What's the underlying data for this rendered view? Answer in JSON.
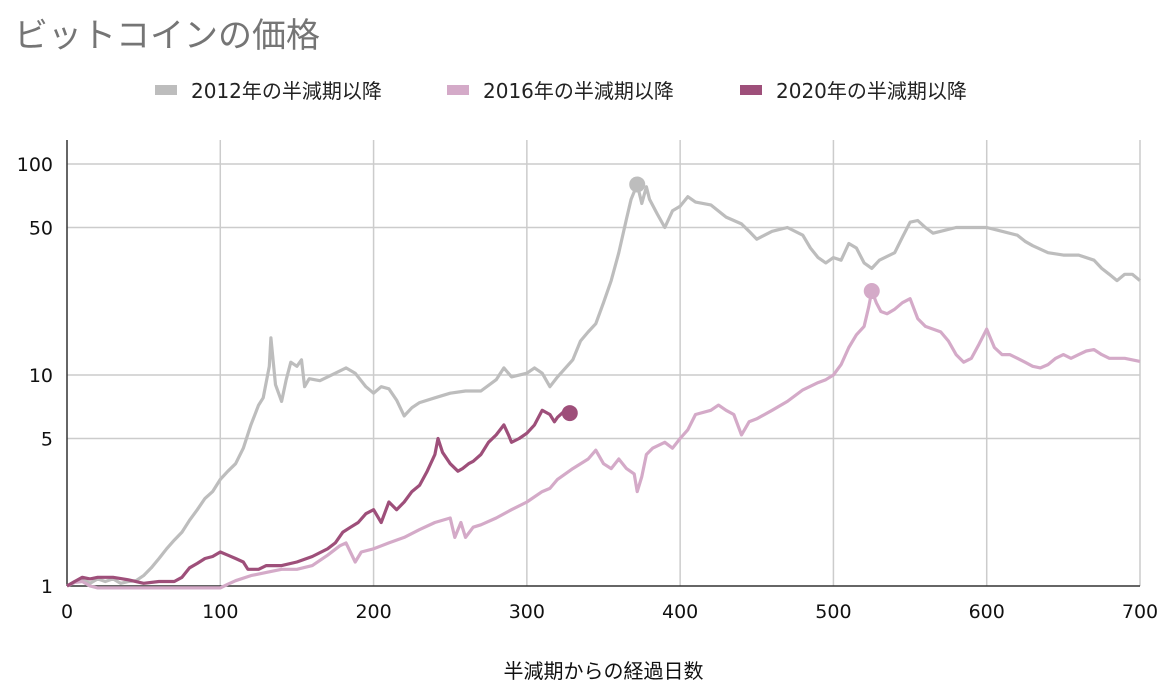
{
  "chart_data": {
    "type": "line",
    "title": "ビットコインの価格",
    "xlabel": "半減期からの経過日数",
    "ylabel": "",
    "x_scale": "linear",
    "y_scale": "log",
    "xlim": [
      0,
      700
    ],
    "ylim": [
      1,
      100
    ],
    "xticks": [
      0,
      100,
      200,
      300,
      400,
      500,
      600,
      700
    ],
    "yticks": [
      1,
      5,
      10,
      50,
      100
    ],
    "grid": true,
    "legend_position": "top",
    "series": [
      {
        "name": "2012年の半減期以降",
        "color": "#bdbdbd",
        "marker_last_peak": true,
        "points": [
          [
            0,
            1
          ],
          [
            5,
            1.05
          ],
          [
            10,
            1.08
          ],
          [
            15,
            1.03
          ],
          [
            20,
            1.08
          ],
          [
            25,
            1.05
          ],
          [
            30,
            1.08
          ],
          [
            35,
            1.03
          ],
          [
            40,
            1.05
          ],
          [
            45,
            1.06
          ],
          [
            50,
            1.12
          ],
          [
            55,
            1.22
          ],
          [
            60,
            1.35
          ],
          [
            65,
            1.5
          ],
          [
            70,
            1.65
          ],
          [
            75,
            1.8
          ],
          [
            80,
            2.05
          ],
          [
            85,
            2.3
          ],
          [
            90,
            2.6
          ],
          [
            95,
            2.8
          ],
          [
            100,
            3.2
          ],
          [
            105,
            3.5
          ],
          [
            110,
            3.8
          ],
          [
            115,
            4.5
          ],
          [
            120,
            5.8
          ],
          [
            125,
            7.2
          ],
          [
            128,
            7.8
          ],
          [
            132,
            11
          ],
          [
            133,
            15
          ],
          [
            136,
            9
          ],
          [
            140,
            7.5
          ],
          [
            143,
            9.5
          ],
          [
            146,
            11.5
          ],
          [
            150,
            11
          ],
          [
            153,
            11.8
          ],
          [
            155,
            8.8
          ],
          [
            158,
            9.6
          ],
          [
            165,
            9.4
          ],
          [
            175,
            10.2
          ],
          [
            182,
            10.8
          ],
          [
            188,
            10.2
          ],
          [
            195,
            8.8
          ],
          [
            200,
            8.2
          ],
          [
            205,
            8.8
          ],
          [
            210,
            8.6
          ],
          [
            215,
            7.6
          ],
          [
            220,
            6.4
          ],
          [
            225,
            7.0
          ],
          [
            230,
            7.4
          ],
          [
            240,
            7.8
          ],
          [
            250,
            8.2
          ],
          [
            260,
            8.4
          ],
          [
            270,
            8.4
          ],
          [
            280,
            9.5
          ],
          [
            285,
            10.8
          ],
          [
            290,
            9.8
          ],
          [
            300,
            10.2
          ],
          [
            305,
            10.8
          ],
          [
            310,
            10.2
          ],
          [
            315,
            8.8
          ],
          [
            320,
            9.8
          ],
          [
            330,
            11.8
          ],
          [
            335,
            14.5
          ],
          [
            340,
            16
          ],
          [
            345,
            17.5
          ],
          [
            350,
            22
          ],
          [
            355,
            28
          ],
          [
            360,
            38
          ],
          [
            365,
            55
          ],
          [
            368,
            68
          ],
          [
            372,
            80
          ],
          [
            375,
            65
          ],
          [
            378,
            78
          ],
          [
            380,
            68
          ],
          [
            385,
            58
          ],
          [
            390,
            50
          ],
          [
            395,
            60
          ],
          [
            400,
            63
          ],
          [
            405,
            70
          ],
          [
            410,
            66
          ],
          [
            420,
            64
          ],
          [
            430,
            56
          ],
          [
            440,
            52
          ],
          [
            445,
            48
          ],
          [
            450,
            44
          ],
          [
            455,
            46
          ],
          [
            460,
            48
          ],
          [
            470,
            50
          ],
          [
            480,
            46
          ],
          [
            485,
            40
          ],
          [
            490,
            36
          ],
          [
            495,
            34
          ],
          [
            500,
            36
          ],
          [
            505,
            35
          ],
          [
            510,
            42
          ],
          [
            515,
            40
          ],
          [
            520,
            34
          ],
          [
            525,
            32
          ],
          [
            530,
            35
          ],
          [
            540,
            38
          ],
          [
            545,
            45
          ],
          [
            550,
            53
          ],
          [
            555,
            54
          ],
          [
            560,
            50
          ],
          [
            565,
            47
          ],
          [
            570,
            48
          ],
          [
            580,
            50
          ],
          [
            590,
            50
          ],
          [
            600,
            50
          ],
          [
            610,
            48
          ],
          [
            620,
            46
          ],
          [
            625,
            43
          ],
          [
            630,
            41
          ],
          [
            640,
            38
          ],
          [
            650,
            37
          ],
          [
            660,
            37
          ],
          [
            670,
            35
          ],
          [
            675,
            32
          ],
          [
            680,
            30
          ],
          [
            685,
            28
          ],
          [
            690,
            30
          ],
          [
            695,
            30
          ],
          [
            700,
            28
          ]
        ]
      },
      {
        "name": "2016年の半減期以降",
        "color": "#d4aac8",
        "marker_last_peak": true,
        "points": [
          [
            0,
            1
          ],
          [
            5,
            1.04
          ],
          [
            10,
            1.05
          ],
          [
            15,
            1.0
          ],
          [
            20,
            0.98
          ],
          [
            60,
            0.98
          ],
          [
            100,
            0.98
          ],
          [
            105,
            1.02
          ],
          [
            110,
            1.06
          ],
          [
            120,
            1.12
          ],
          [
            130,
            1.16
          ],
          [
            140,
            1.2
          ],
          [
            150,
            1.2
          ],
          [
            160,
            1.25
          ],
          [
            170,
            1.4
          ],
          [
            178,
            1.55
          ],
          [
            182,
            1.6
          ],
          [
            188,
            1.3
          ],
          [
            192,
            1.45
          ],
          [
            200,
            1.5
          ],
          [
            210,
            1.6
          ],
          [
            220,
            1.7
          ],
          [
            230,
            1.85
          ],
          [
            240,
            2.0
          ],
          [
            250,
            2.1
          ],
          [
            253,
            1.7
          ],
          [
            257,
            2.0
          ],
          [
            260,
            1.7
          ],
          [
            265,
            1.9
          ],
          [
            270,
            1.95
          ],
          [
            280,
            2.1
          ],
          [
            290,
            2.3
          ],
          [
            300,
            2.5
          ],
          [
            310,
            2.8
          ],
          [
            315,
            2.9
          ],
          [
            320,
            3.2
          ],
          [
            330,
            3.6
          ],
          [
            340,
            4.0
          ],
          [
            345,
            4.4
          ],
          [
            350,
            3.8
          ],
          [
            355,
            3.6
          ],
          [
            360,
            4.0
          ],
          [
            365,
            3.6
          ],
          [
            370,
            3.4
          ],
          [
            372,
            2.8
          ],
          [
            375,
            3.3
          ],
          [
            378,
            4.2
          ],
          [
            382,
            4.5
          ],
          [
            390,
            4.8
          ],
          [
            395,
            4.5
          ],
          [
            400,
            5.0
          ],
          [
            405,
            5.5
          ],
          [
            410,
            6.5
          ],
          [
            420,
            6.8
          ],
          [
            425,
            7.2
          ],
          [
            430,
            6.8
          ],
          [
            435,
            6.5
          ],
          [
            440,
            5.2
          ],
          [
            445,
            6.0
          ],
          [
            450,
            6.2
          ],
          [
            460,
            6.8
          ],
          [
            470,
            7.5
          ],
          [
            480,
            8.5
          ],
          [
            490,
            9.2
          ],
          [
            495,
            9.5
          ],
          [
            500,
            10.0
          ],
          [
            505,
            11.2
          ],
          [
            510,
            13.5
          ],
          [
            515,
            15.5
          ],
          [
            520,
            17.0
          ],
          [
            523,
            21
          ],
          [
            525,
            25
          ],
          [
            528,
            22
          ],
          [
            531,
            20
          ],
          [
            535,
            19.5
          ],
          [
            540,
            20.5
          ],
          [
            545,
            22.0
          ],
          [
            550,
            23.0
          ],
          [
            555,
            18.5
          ],
          [
            560,
            17.0
          ],
          [
            570,
            16.0
          ],
          [
            575,
            14.5
          ],
          [
            580,
            12.5
          ],
          [
            585,
            11.5
          ],
          [
            590,
            12.0
          ],
          [
            595,
            14.0
          ],
          [
            600,
            16.5
          ],
          [
            605,
            13.5
          ],
          [
            610,
            12.5
          ],
          [
            615,
            12.5
          ],
          [
            620,
            12.0
          ],
          [
            625,
            11.5
          ],
          [
            630,
            11.0
          ],
          [
            635,
            10.8
          ],
          [
            640,
            11.2
          ],
          [
            645,
            12.0
          ],
          [
            650,
            12.5
          ],
          [
            655,
            12.0
          ],
          [
            660,
            12.5
          ],
          [
            665,
            13.0
          ],
          [
            670,
            13.2
          ],
          [
            675,
            12.5
          ],
          [
            680,
            12.0
          ],
          [
            690,
            12.0
          ],
          [
            700,
            11.6
          ]
        ]
      },
      {
        "name": "2020年の半減期以降",
        "color": "#9e4f7a",
        "marker_last_peak": false,
        "points": [
          [
            0,
            1
          ],
          [
            5,
            1.05
          ],
          [
            10,
            1.1
          ],
          [
            15,
            1.08
          ],
          [
            20,
            1.1
          ],
          [
            30,
            1.1
          ],
          [
            40,
            1.07
          ],
          [
            50,
            1.03
          ],
          [
            60,
            1.05
          ],
          [
            70,
            1.05
          ],
          [
            75,
            1.1
          ],
          [
            80,
            1.22
          ],
          [
            85,
            1.28
          ],
          [
            90,
            1.35
          ],
          [
            95,
            1.38
          ],
          [
            100,
            1.45
          ],
          [
            105,
            1.4
          ],
          [
            110,
            1.35
          ],
          [
            115,
            1.3
          ],
          [
            118,
            1.2
          ],
          [
            125,
            1.2
          ],
          [
            130,
            1.25
          ],
          [
            140,
            1.25
          ],
          [
            150,
            1.3
          ],
          [
            160,
            1.38
          ],
          [
            170,
            1.5
          ],
          [
            175,
            1.6
          ],
          [
            180,
            1.8
          ],
          [
            185,
            1.9
          ],
          [
            190,
            2.0
          ],
          [
            195,
            2.2
          ],
          [
            200,
            2.3
          ],
          [
            205,
            2.0
          ],
          [
            210,
            2.5
          ],
          [
            215,
            2.3
          ],
          [
            220,
            2.5
          ],
          [
            225,
            2.8
          ],
          [
            230,
            3.0
          ],
          [
            235,
            3.5
          ],
          [
            240,
            4.2
          ],
          [
            242,
            5.0
          ],
          [
            245,
            4.3
          ],
          [
            250,
            3.8
          ],
          [
            255,
            3.5
          ],
          [
            258,
            3.6
          ],
          [
            262,
            3.8
          ],
          [
            265,
            3.9
          ],
          [
            270,
            4.2
          ],
          [
            275,
            4.8
          ],
          [
            280,
            5.2
          ],
          [
            285,
            5.8
          ],
          [
            288,
            5.2
          ],
          [
            290,
            4.8
          ],
          [
            295,
            5.0
          ],
          [
            300,
            5.3
          ],
          [
            305,
            5.8
          ],
          [
            310,
            6.8
          ],
          [
            315,
            6.5
          ],
          [
            318,
            6.0
          ],
          [
            320,
            6.3
          ],
          [
            325,
            6.8
          ],
          [
            328,
            6.6
          ]
        ]
      }
    ]
  }
}
